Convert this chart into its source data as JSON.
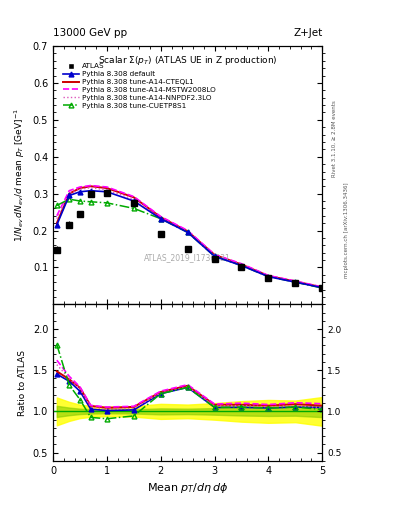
{
  "title_top_left": "13000 GeV pp",
  "title_top_right": "Z+Jet",
  "plot_title": "Scalar Σ(p_T) (ATLAS UE in Z production)",
  "watermark": "ATLAS_2019_I1736531",
  "right_label_top": "Rivet 3.1.10, ≥ 2.8M events",
  "right_label_bottom": "mcplots.cern.ch [arXiv:1306.3436]",
  "xlim": [
    0.0,
    5.0
  ],
  "ylim_main": [
    0.0,
    0.7
  ],
  "ylim_ratio": [
    0.4,
    2.3
  ],
  "yticks_main": [
    0.1,
    0.2,
    0.3,
    0.4,
    0.5,
    0.6,
    0.7
  ],
  "yticks_ratio": [
    0.5,
    1.0,
    1.5,
    2.0
  ],
  "xticks": [
    0,
    1,
    2,
    3,
    4,
    5
  ],
  "atlas_x": [
    0.07,
    0.3,
    0.5,
    0.7,
    1.0,
    1.5,
    2.0,
    2.5,
    3.0,
    3.5,
    4.0,
    4.5,
    5.0
  ],
  "atlas_y": [
    0.148,
    0.216,
    0.245,
    0.3,
    0.302,
    0.275,
    0.191,
    0.151,
    0.124,
    0.1,
    0.072,
    0.057,
    0.043
  ],
  "atlas_yerr": [
    0.01,
    0.01,
    0.008,
    0.008,
    0.007,
    0.007,
    0.007,
    0.005,
    0.005,
    0.005,
    0.004,
    0.003,
    0.003
  ],
  "default_y": [
    0.215,
    0.295,
    0.305,
    0.308,
    0.305,
    0.28,
    0.232,
    0.195,
    0.13,
    0.105,
    0.075,
    0.06,
    0.045
  ],
  "cteq_y": [
    0.22,
    0.3,
    0.315,
    0.32,
    0.315,
    0.29,
    0.236,
    0.198,
    0.134,
    0.108,
    0.077,
    0.062,
    0.046
  ],
  "mstw_y": [
    0.24,
    0.308,
    0.318,
    0.322,
    0.318,
    0.292,
    0.238,
    0.2,
    0.135,
    0.11,
    0.078,
    0.063,
    0.047
  ],
  "nnpdf_y": [
    0.232,
    0.302,
    0.312,
    0.316,
    0.31,
    0.285,
    0.234,
    0.196,
    0.132,
    0.107,
    0.076,
    0.061,
    0.045
  ],
  "cuetp_y": [
    0.268,
    0.285,
    0.28,
    0.278,
    0.275,
    0.26,
    0.232,
    0.195,
    0.13,
    0.105,
    0.075,
    0.06,
    0.044
  ],
  "color_atlas": "#000000",
  "color_default": "#0000cc",
  "color_cteq": "#cc0000",
  "color_mstw": "#ff00ff",
  "color_nnpdf": "#dd55bb",
  "color_cuetp": "#00aa00"
}
